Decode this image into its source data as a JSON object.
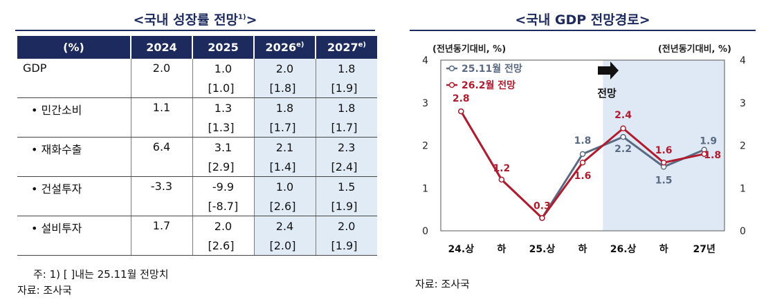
{
  "left_panel": {
    "title": "<국내 성장률 전망",
    "title_sup": "1)",
    "title_end": ">",
    "headers": [
      "(%)",
      "2024",
      "2025",
      "2026",
      "2027"
    ],
    "header_sup": [
      "",
      "",
      "",
      "e)",
      "e)"
    ],
    "rows": [
      {
        "label": "GDP",
        "v2024": "2.0",
        "v2025": "1.0",
        "v2025_prev": "[1.0]",
        "v2026": "2.0",
        "v2026_prev": "[1.8]",
        "v2027": "1.8",
        "v2027_prev": "[1.9]"
      },
      {
        "label": "• 민간소비",
        "v2024": "1.1",
        "v2025": "1.3",
        "v2025_prev": "[1.3]",
        "v2026": "1.8",
        "v2026_prev": "[1.7]",
        "v2027": "1.8",
        "v2027_prev": "[1.7]"
      },
      {
        "label": "• 재화수출",
        "v2024": "6.4",
        "v2025": "3.1",
        "v2025_prev": "[2.9]",
        "v2026": "2.1",
        "v2026_prev": "[1.4]",
        "v2027": "2.3",
        "v2027_prev": "[2.4]"
      },
      {
        "label": "• 건설투자",
        "v2024": "-3.3",
        "v2025": "-9.9",
        "v2025_prev": "[-8.7]",
        "v2026": "1.0",
        "v2026_prev": "[2.6]",
        "v2027": "1.5",
        "v2027_prev": "[1.9]"
      },
      {
        "label": "• 설비투자",
        "v2024": "1.7",
        "v2025": "2.0",
        "v2025_prev": "[2.6]",
        "v2026": "2.4",
        "v2026_prev": "[2.0]",
        "v2027": "2.0",
        "v2027_prev": "[1.9]"
      }
    ],
    "note": "주: 1) [ ]내는 25.11월 전망치",
    "source": "자료: 조사국"
  },
  "right_panel": {
    "title": "<국내 GDP 전망경로>",
    "source": "자료: 조사국",
    "forecast_label": "전망"
  },
  "chart_data": {
    "type": "line",
    "title": "<국내 GDP 전망경로>",
    "ylabel_left": "(전년동기대비, %)",
    "ylabel_right": "(전년동기대비, %)",
    "categories": [
      "24.상",
      "하",
      "25.상",
      "하",
      "26.상",
      "하",
      "27년"
    ],
    "ylim": [
      0,
      4
    ],
    "yticks": [
      "0",
      "1",
      "2",
      "3",
      "4"
    ],
    "forecast_start_index": 4,
    "legend_position": "top-left",
    "grid": false,
    "colors": {
      "series1": "#5a6a82",
      "series2": "#b01c2e",
      "forecast_shade": "#dfe9f5"
    },
    "series": [
      {
        "name": "25.11월 전망",
        "values": [
          2.8,
          1.2,
          0.3,
          1.8,
          2.2,
          1.5,
          1.9
        ],
        "labels": [
          "",
          "",
          "",
          "1.8",
          "2.2",
          "1.5",
          "1.9"
        ]
      },
      {
        "name": "26.2월 전망",
        "values": [
          2.8,
          1.2,
          0.3,
          1.6,
          2.4,
          1.6,
          1.8
        ],
        "labels": [
          "2.8",
          "1.2",
          "0.3",
          "1.6",
          "2.4",
          "1.6",
          "1.8"
        ]
      }
    ]
  }
}
